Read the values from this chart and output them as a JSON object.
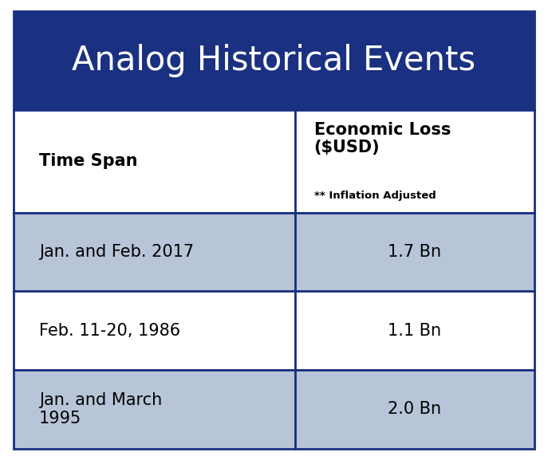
{
  "title": "Analog Historical Events",
  "title_bg_color": "#1a3080",
  "title_text_color": "#ffffff",
  "title_fontsize": 30,
  "header_col1": "Time Span",
  "header_col2": "Economic Loss\n($USD)",
  "header_sub": "** Inflation Adjusted",
  "header_bg_color": "#ffffff",
  "header_text_color": "#000000",
  "header_fontsize": 15,
  "row_bg_colors": [
    "#b8c4d8",
    "#ffffff",
    "#b8c4d8"
  ],
  "row_text_color": "#000000",
  "row_fontsize": 15,
  "border_color": "#1a3080",
  "rows": [
    [
      "Jan. and Feb. 2017",
      "1.7 Bn"
    ],
    [
      "Feb. 11-20, 1986",
      "1.1 Bn"
    ],
    [
      "Jan. and March\n1995",
      "2.0 Bn"
    ]
  ],
  "col_split": 0.54,
  "figsize": [
    6.87,
    5.77
  ],
  "dpi": 100
}
